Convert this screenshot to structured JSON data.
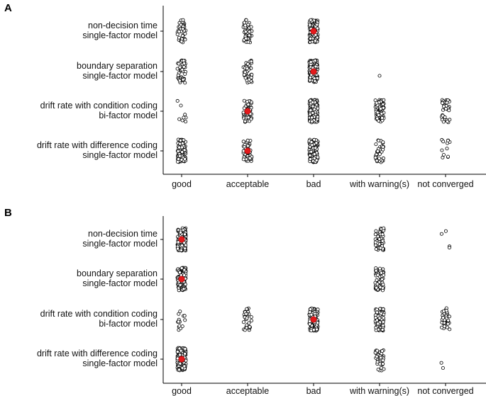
{
  "chart_data": [
    {
      "type": "scatter",
      "panel": "A",
      "title": "",
      "xlabel": "",
      "ylabel": "",
      "categories": [
        "good",
        "acceptable",
        "bad",
        "with warning(s)",
        "not converged"
      ],
      "models": [
        [
          "non-decision time",
          "single-factor model"
        ],
        [
          "boundary separation",
          "single-factor model"
        ],
        [
          "drift rate with condition coding",
          "bi-factor model"
        ],
        [
          "drift rate with difference coding",
          "single-factor model"
        ]
      ],
      "counts": [
        [
          45,
          50,
          140,
          0,
          0
        ],
        [
          45,
          45,
          120,
          1,
          0
        ],
        [
          8,
          55,
          160,
          90,
          40
        ],
        [
          90,
          50,
          150,
          35,
          12
        ]
      ],
      "means": [
        [
          false,
          false,
          true,
          false,
          false
        ],
        [
          false,
          false,
          true,
          false,
          false
        ],
        [
          false,
          true,
          false,
          false,
          false
        ],
        [
          false,
          true,
          false,
          false,
          false
        ]
      ],
      "grid": false
    },
    {
      "type": "scatter",
      "panel": "B",
      "title": "",
      "xlabel": "",
      "ylabel": "",
      "categories": [
        "good",
        "acceptable",
        "bad",
        "with warning(s)",
        "not converged"
      ],
      "models": [
        [
          "non-decision time",
          "single-factor model"
        ],
        [
          "boundary separation",
          "single-factor model"
        ],
        [
          "drift rate with condition coding",
          "bi-factor model"
        ],
        [
          "drift rate with difference coding",
          "single-factor model"
        ]
      ],
      "counts": [
        [
          150,
          0,
          0,
          70,
          4
        ],
        [
          140,
          0,
          0,
          70,
          0
        ],
        [
          14,
          35,
          140,
          110,
          35
        ],
        [
          150,
          0,
          0,
          40,
          2
        ]
      ],
      "means": [
        [
          true,
          false,
          false,
          false,
          false
        ],
        [
          true,
          false,
          false,
          false,
          false
        ],
        [
          false,
          false,
          true,
          false,
          false
        ],
        [
          true,
          false,
          false,
          false,
          false
        ]
      ],
      "grid": false
    }
  ]
}
